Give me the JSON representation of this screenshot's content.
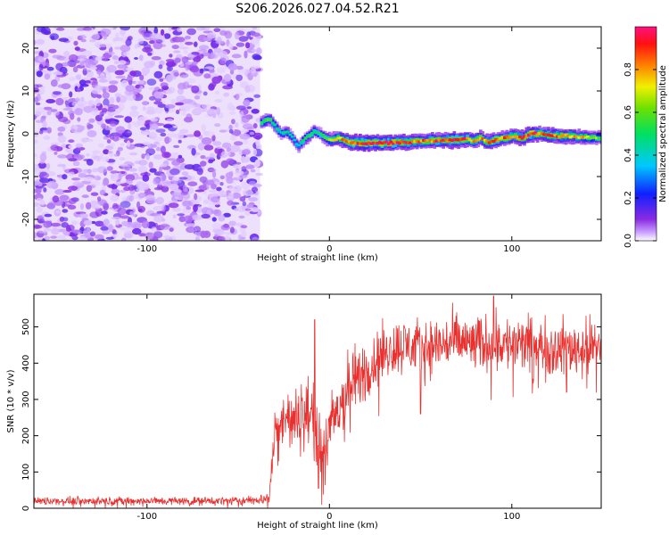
{
  "title": "S206.2026.027.04.52.R21",
  "chart_data": [
    {
      "type": "heatmap",
      "title": "S206.2026.027.04.52.R21",
      "xlabel": "Height of straight line (km)",
      "ylabel": "Frequency (Hz)",
      "xlim": [
        -162,
        149
      ],
      "ylim": [
        -25,
        25
      ],
      "xticks": [
        -100,
        0,
        100
      ],
      "xtick_labels": [
        "-100",
        "0",
        "100"
      ],
      "yticks": [
        -20,
        -10,
        0,
        10,
        20
      ],
      "ytick_labels": [
        "-20",
        "-10",
        "0",
        "10",
        "20"
      ],
      "noise_region_x": [
        -162,
        -38
      ],
      "ridge": {
        "x": [
          -38,
          -34,
          -30,
          -27,
          -24,
          -21,
          -18,
          -15,
          -12,
          -9,
          -6,
          -3,
          0,
          4,
          10,
          20,
          30,
          40,
          50,
          60,
          70,
          75,
          78,
          82,
          86,
          90,
          95,
          100,
          105,
          110,
          115,
          120,
          130,
          140,
          149
        ],
        "freq": [
          2.5,
          3.5,
          1.5,
          0.0,
          0.5,
          -1.0,
          -3.0,
          -1.5,
          -0.5,
          0.5,
          0.0,
          -1.0,
          -1.5,
          -1.0,
          -2.0,
          -2.2,
          -2.1,
          -2.0,
          -1.8,
          -1.5,
          -1.5,
          -1.2,
          -1.8,
          -1.0,
          -2.0,
          -1.5,
          -1.0,
          -0.5,
          -1.0,
          0.0,
          0.0,
          -0.5,
          -0.5,
          -0.8,
          -1.0
        ],
        "amp": [
          0.55,
          0.6,
          0.5,
          0.45,
          0.5,
          0.45,
          0.45,
          0.5,
          0.55,
          0.55,
          0.5,
          0.6,
          0.75,
          0.8,
          0.9,
          1.0,
          0.95,
          0.9,
          0.85,
          0.9,
          0.95,
          0.9,
          0.85,
          0.8,
          0.85,
          0.9,
          0.85,
          0.85,
          0.9,
          0.95,
          0.85,
          0.9,
          0.8,
          0.75,
          0.6
        ]
      }
    },
    {
      "type": "colorbar",
      "label": "Normalized spectral amplitude",
      "range": [
        0,
        1
      ],
      "ticks": [
        0.0,
        0.2,
        0.4,
        0.6,
        0.8
      ],
      "tick_labels": [
        "0.0",
        "0.2",
        "0.4",
        "0.6",
        "0.8"
      ]
    },
    {
      "type": "line",
      "xlabel": "Height of straight line (km)",
      "ylabel": "SNR (10 * v/v)",
      "xlim": [
        -162,
        149
      ],
      "ylim": [
        0,
        590
      ],
      "xticks": [
        -100,
        0,
        100
      ],
      "xtick_labels": [
        "-100",
        "0",
        "100"
      ],
      "yticks": [
        0,
        100,
        200,
        300,
        400,
        500
      ],
      "ytick_labels": [
        "0",
        "100",
        "200",
        "300",
        "400",
        "500"
      ],
      "color": "#e8312f",
      "series": [
        {
          "name": "SNR",
          "x": [
            -162,
            -140,
            -120,
            -100,
            -80,
            -60,
            -40,
            -33,
            -30,
            -25,
            -20,
            -15,
            -10,
            -7,
            -5,
            0,
            10,
            20,
            30,
            40,
            50,
            60,
            70,
            80,
            90,
            100,
            110,
            120,
            130,
            140,
            149
          ],
          "mean": [
            20,
            20,
            20,
            20,
            20,
            20,
            22,
            30,
            200,
            260,
            230,
            260,
            260,
            250,
            150,
            210,
            330,
            380,
            430,
            450,
            440,
            450,
            460,
            450,
            460,
            450,
            450,
            440,
            440,
            440,
            450
          ],
          "noise": [
            8,
            8,
            8,
            8,
            8,
            8,
            9,
            12,
            50,
            60,
            60,
            70,
            70,
            90,
            60,
            70,
            70,
            60,
            55,
            55,
            55,
            55,
            55,
            55,
            55,
            55,
            55,
            55,
            55,
            55,
            55
          ],
          "peaks": [
            {
              "x": -8,
              "y": 520
            },
            {
              "x": -6,
              "y": 55
            },
            {
              "x": 90,
              "y": 585
            },
            {
              "x": 50,
              "y": 260
            },
            {
              "x": 130,
              "y": 320
            }
          ]
        }
      ]
    }
  ]
}
